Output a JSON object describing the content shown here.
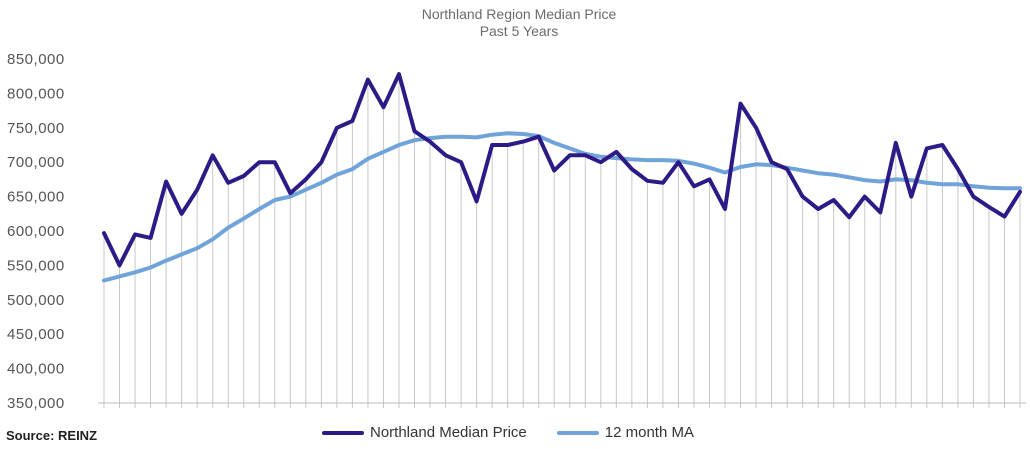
{
  "source_label": "Source: REINZ",
  "colors": {
    "median": "#2e1a87",
    "ma": "#6fa3d9",
    "dropline": "#c8c8c8"
  },
  "chart_data": {
    "type": "line",
    "title": "Northland Region Median Price",
    "subtitle": "Past 5 Years",
    "ylim": [
      350000,
      850000
    ],
    "yticks": [
      "850,000",
      "800,000",
      "750,000",
      "700,000",
      "650,000",
      "600,000",
      "550,000",
      "500,000",
      "450,000",
      "400,000",
      "350,000"
    ],
    "ytick_values": [
      850000,
      800000,
      750000,
      700000,
      650000,
      600000,
      550000,
      500000,
      450000,
      400000,
      350000
    ],
    "grid": false,
    "legend": "bottom",
    "series": [
      {
        "name": "Northland Median Price",
        "values": [
          597000,
          550000,
          595000,
          590000,
          672000,
          625000,
          660000,
          710000,
          670000,
          680000,
          700000,
          700000,
          655000,
          675000,
          700000,
          750000,
          760000,
          820000,
          780000,
          828000,
          745000,
          730000,
          710000,
          700000,
          643000,
          725000,
          725000,
          730000,
          737000,
          688000,
          710000,
          710000,
          700000,
          715000,
          690000,
          673000,
          670000,
          700000,
          665000,
          675000,
          632000,
          785000,
          750000,
          700000,
          690000,
          650000,
          632000,
          645000,
          620000,
          650000,
          627000,
          728000,
          650000,
          720000,
          725000,
          690000,
          650000,
          635000,
          621000,
          657000
        ]
      },
      {
        "name": "12 month MA",
        "values": [
          528000,
          534000,
          540000,
          547000,
          557000,
          566000,
          575000,
          588000,
          605000,
          618000,
          632000,
          645000,
          650000,
          660000,
          670000,
          682000,
          690000,
          705000,
          715000,
          725000,
          732000,
          735000,
          737000,
          737000,
          736000,
          740000,
          742000,
          741000,
          738000,
          728000,
          720000,
          712000,
          708000,
          706000,
          704000,
          703000,
          703000,
          702000,
          698000,
          692000,
          685000,
          693000,
          697000,
          696000,
          692000,
          688000,
          684000,
          682000,
          678000,
          674000,
          672000,
          675000,
          674000,
          670000,
          668000,
          668000,
          665000,
          663000,
          662000,
          662000
        ]
      }
    ]
  }
}
